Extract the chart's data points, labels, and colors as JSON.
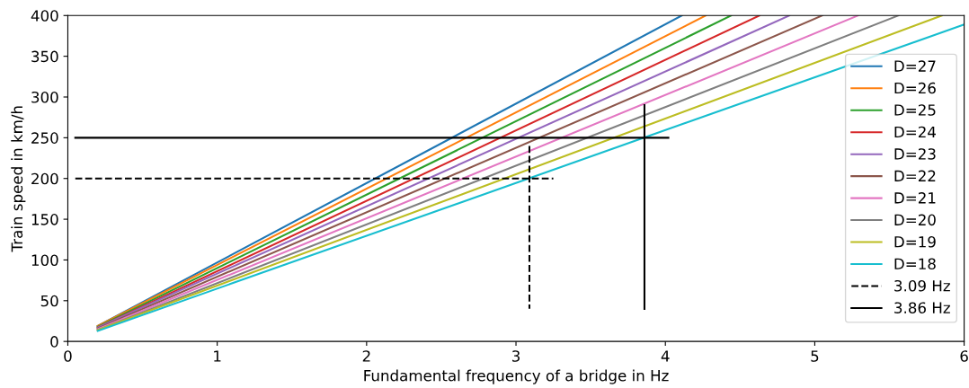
{
  "chart_data": {
    "type": "line",
    "xlabel": "Fundamental frequency of a bridge in Hz",
    "ylabel": "Train speed in km/h",
    "xlim": [
      0,
      6
    ],
    "ylim": [
      0,
      400
    ],
    "xticks": [
      0,
      1,
      2,
      3,
      4,
      5,
      6
    ],
    "yticks": [
      0,
      50,
      100,
      150,
      200,
      250,
      300,
      350,
      400
    ],
    "grid": false,
    "legend": "right",
    "series": [
      {
        "name": "D=27",
        "color": "#1f77b4",
        "x": [
          0.2,
          4.11
        ],
        "values": [
          19,
          400
        ]
      },
      {
        "name": "D=26",
        "color": "#ff7f0e",
        "x": [
          0.2,
          4.27
        ],
        "values": [
          19,
          400
        ]
      },
      {
        "name": "D=25",
        "color": "#2ca02c",
        "x": [
          0.2,
          4.44
        ],
        "values": [
          18,
          400
        ]
      },
      {
        "name": "D=24",
        "color": "#d62728",
        "x": [
          0.2,
          4.63
        ],
        "values": [
          17,
          400
        ]
      },
      {
        "name": "D=23",
        "color": "#9467bd",
        "x": [
          0.2,
          4.83
        ],
        "values": [
          17,
          400
        ]
      },
      {
        "name": "D=22",
        "color": "#8c564b",
        "x": [
          0.2,
          5.05
        ],
        "values": [
          16,
          400
        ]
      },
      {
        "name": "D=21",
        "color": "#e377c2",
        "x": [
          0.2,
          5.29
        ],
        "values": [
          15,
          400
        ]
      },
      {
        "name": "D=20",
        "color": "#7f7f7f",
        "x": [
          0.2,
          5.56
        ],
        "values": [
          14,
          400
        ]
      },
      {
        "name": "D=19",
        "color": "#bcbd22",
        "x": [
          0.2,
          5.85
        ],
        "values": [
          14,
          400
        ]
      },
      {
        "name": "D=18",
        "color": "#17becf",
        "x": [
          0.2,
          6
        ],
        "values": [
          13,
          389
        ]
      },
      {
        "name": "3.09 Hz",
        "color": "#000000",
        "line_style": "dashed",
        "x": [
          0.05,
          3.25,
          null,
          3.09,
          3.09
        ],
        "values": [
          200,
          200,
          null,
          240,
          40
        ]
      },
      {
        "name": "3.86 Hz",
        "color": "#000000",
        "line_style": "solid",
        "x": [
          0.05,
          4.02,
          null,
          3.86,
          3.86
        ],
        "values": [
          250,
          250,
          null,
          290,
          40
        ]
      }
    ]
  }
}
